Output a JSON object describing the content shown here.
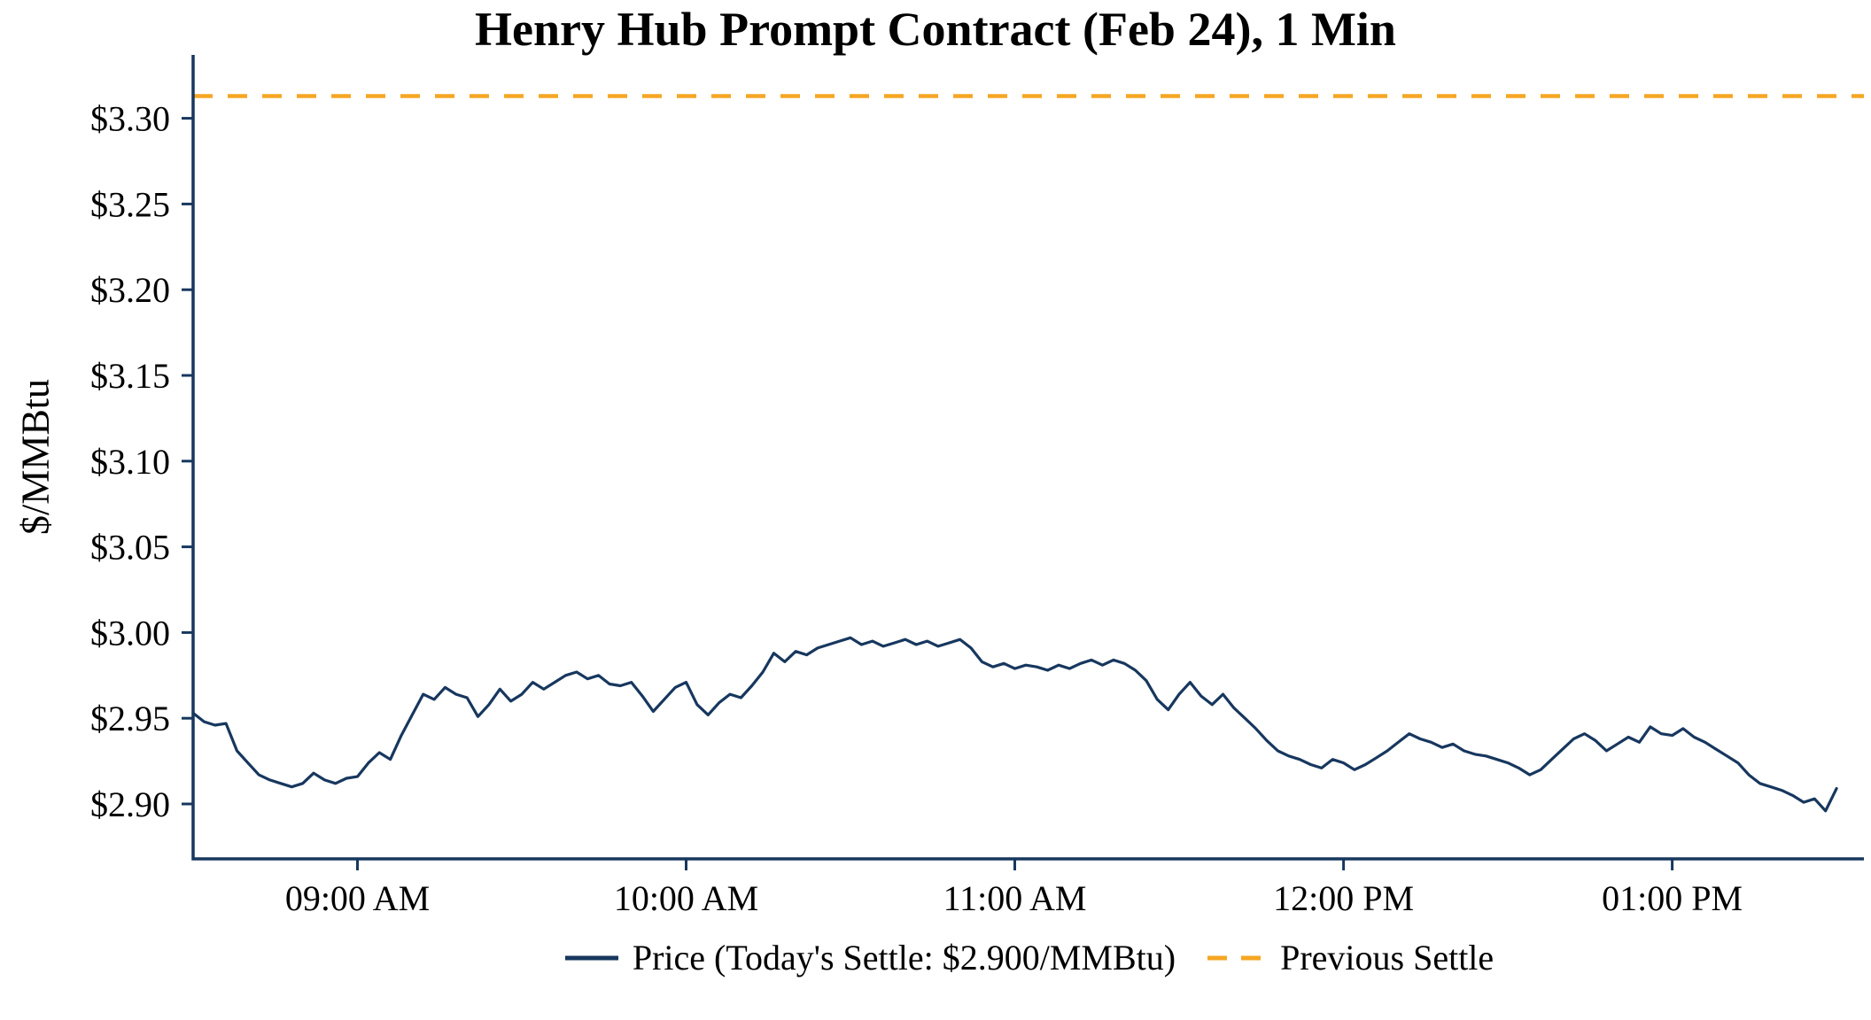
{
  "title": "Henry Hub Prompt Contract (Feb 24), 1 Min",
  "colors": {
    "price_line": "#17375e",
    "previous_settle": "#f5a623",
    "axis": "#17375e",
    "text": "#000000",
    "background": "#ffffff"
  },
  "chart_data": {
    "type": "line",
    "title": "Henry Hub Prompt Contract (Feb 24), 1 Min",
    "xlabel": "",
    "ylabel": "$/MMBtu",
    "grid": false,
    "legend_position": "bottom",
    "x_axis": {
      "start_time": "08:30 AM",
      "end_time": "01:35 PM",
      "total_minutes": 305,
      "tick_minutes": [
        30,
        90,
        150,
        210,
        270
      ],
      "tick_labels": [
        "09:00 AM",
        "10:00 AM",
        "11:00 AM",
        "12:00 PM",
        "01:00 PM"
      ]
    },
    "y_axis": {
      "ticks": [
        2.9,
        2.95,
        3.0,
        3.05,
        3.1,
        3.15,
        3.2,
        3.25,
        3.3
      ],
      "tick_labels": [
        "$2.90",
        "$2.95",
        "$3.00",
        "$3.05",
        "$3.10",
        "$3.15",
        "$3.20",
        "$3.25",
        "$3.30"
      ],
      "ylim": [
        2.868,
        3.337
      ]
    },
    "today_settle": 2.9,
    "previous_settle": 3.313,
    "series": [
      {
        "name": "Price (Today's Settle: $2.900/MMBtu)",
        "type": "line",
        "style": "solid",
        "color": "#17375e",
        "start_minute": 0,
        "sample_interval_minutes": 2,
        "values": [
          2.953,
          2.948,
          2.946,
          2.947,
          2.931,
          2.924,
          2.917,
          2.914,
          2.912,
          2.91,
          2.912,
          2.918,
          2.914,
          2.912,
          2.915,
          2.916,
          2.924,
          2.93,
          2.926,
          2.94,
          2.952,
          2.964,
          2.961,
          2.968,
          2.964,
          2.962,
          2.951,
          2.958,
          2.967,
          2.96,
          2.964,
          2.971,
          2.967,
          2.971,
          2.975,
          2.977,
          2.973,
          2.975,
          2.97,
          2.969,
          2.971,
          2.963,
          2.954,
          2.961,
          2.968,
          2.971,
          2.958,
          2.952,
          2.959,
          2.964,
          2.962,
          2.969,
          2.977,
          2.988,
          2.983,
          2.989,
          2.987,
          2.991,
          2.993,
          2.995,
          2.997,
          2.993,
          2.995,
          2.992,
          2.994,
          2.996,
          2.993,
          2.995,
          2.992,
          2.994,
          2.996,
          2.991,
          2.983,
          2.98,
          2.982,
          2.979,
          2.981,
          2.98,
          2.978,
          2.981,
          2.979,
          2.982,
          2.984,
          2.981,
          2.984,
          2.982,
          2.978,
          2.972,
          2.961,
          2.955,
          2.964,
          2.971,
          2.963,
          2.958,
          2.964,
          2.956,
          2.95,
          2.944,
          2.937,
          2.931,
          2.928,
          2.926,
          2.923,
          2.921,
          2.926,
          2.924,
          2.92,
          2.923,
          2.927,
          2.931,
          2.936,
          2.941,
          2.938,
          2.936,
          2.933,
          2.935,
          2.931,
          2.929,
          2.928,
          2.926,
          2.924,
          2.921,
          2.917,
          2.92,
          2.926,
          2.932,
          2.938,
          2.941,
          2.937,
          2.931,
          2.935,
          2.939,
          2.936,
          2.945,
          2.941,
          2.94,
          2.944,
          2.939,
          2.936,
          2.932,
          2.928,
          2.924,
          2.917,
          2.912,
          2.91,
          2.908,
          2.905,
          2.901,
          2.903,
          2.896,
          2.909
        ]
      },
      {
        "name": "Previous Settle",
        "type": "hline",
        "style": "dashed",
        "color": "#f5a623",
        "value": 3.313
      }
    ]
  }
}
